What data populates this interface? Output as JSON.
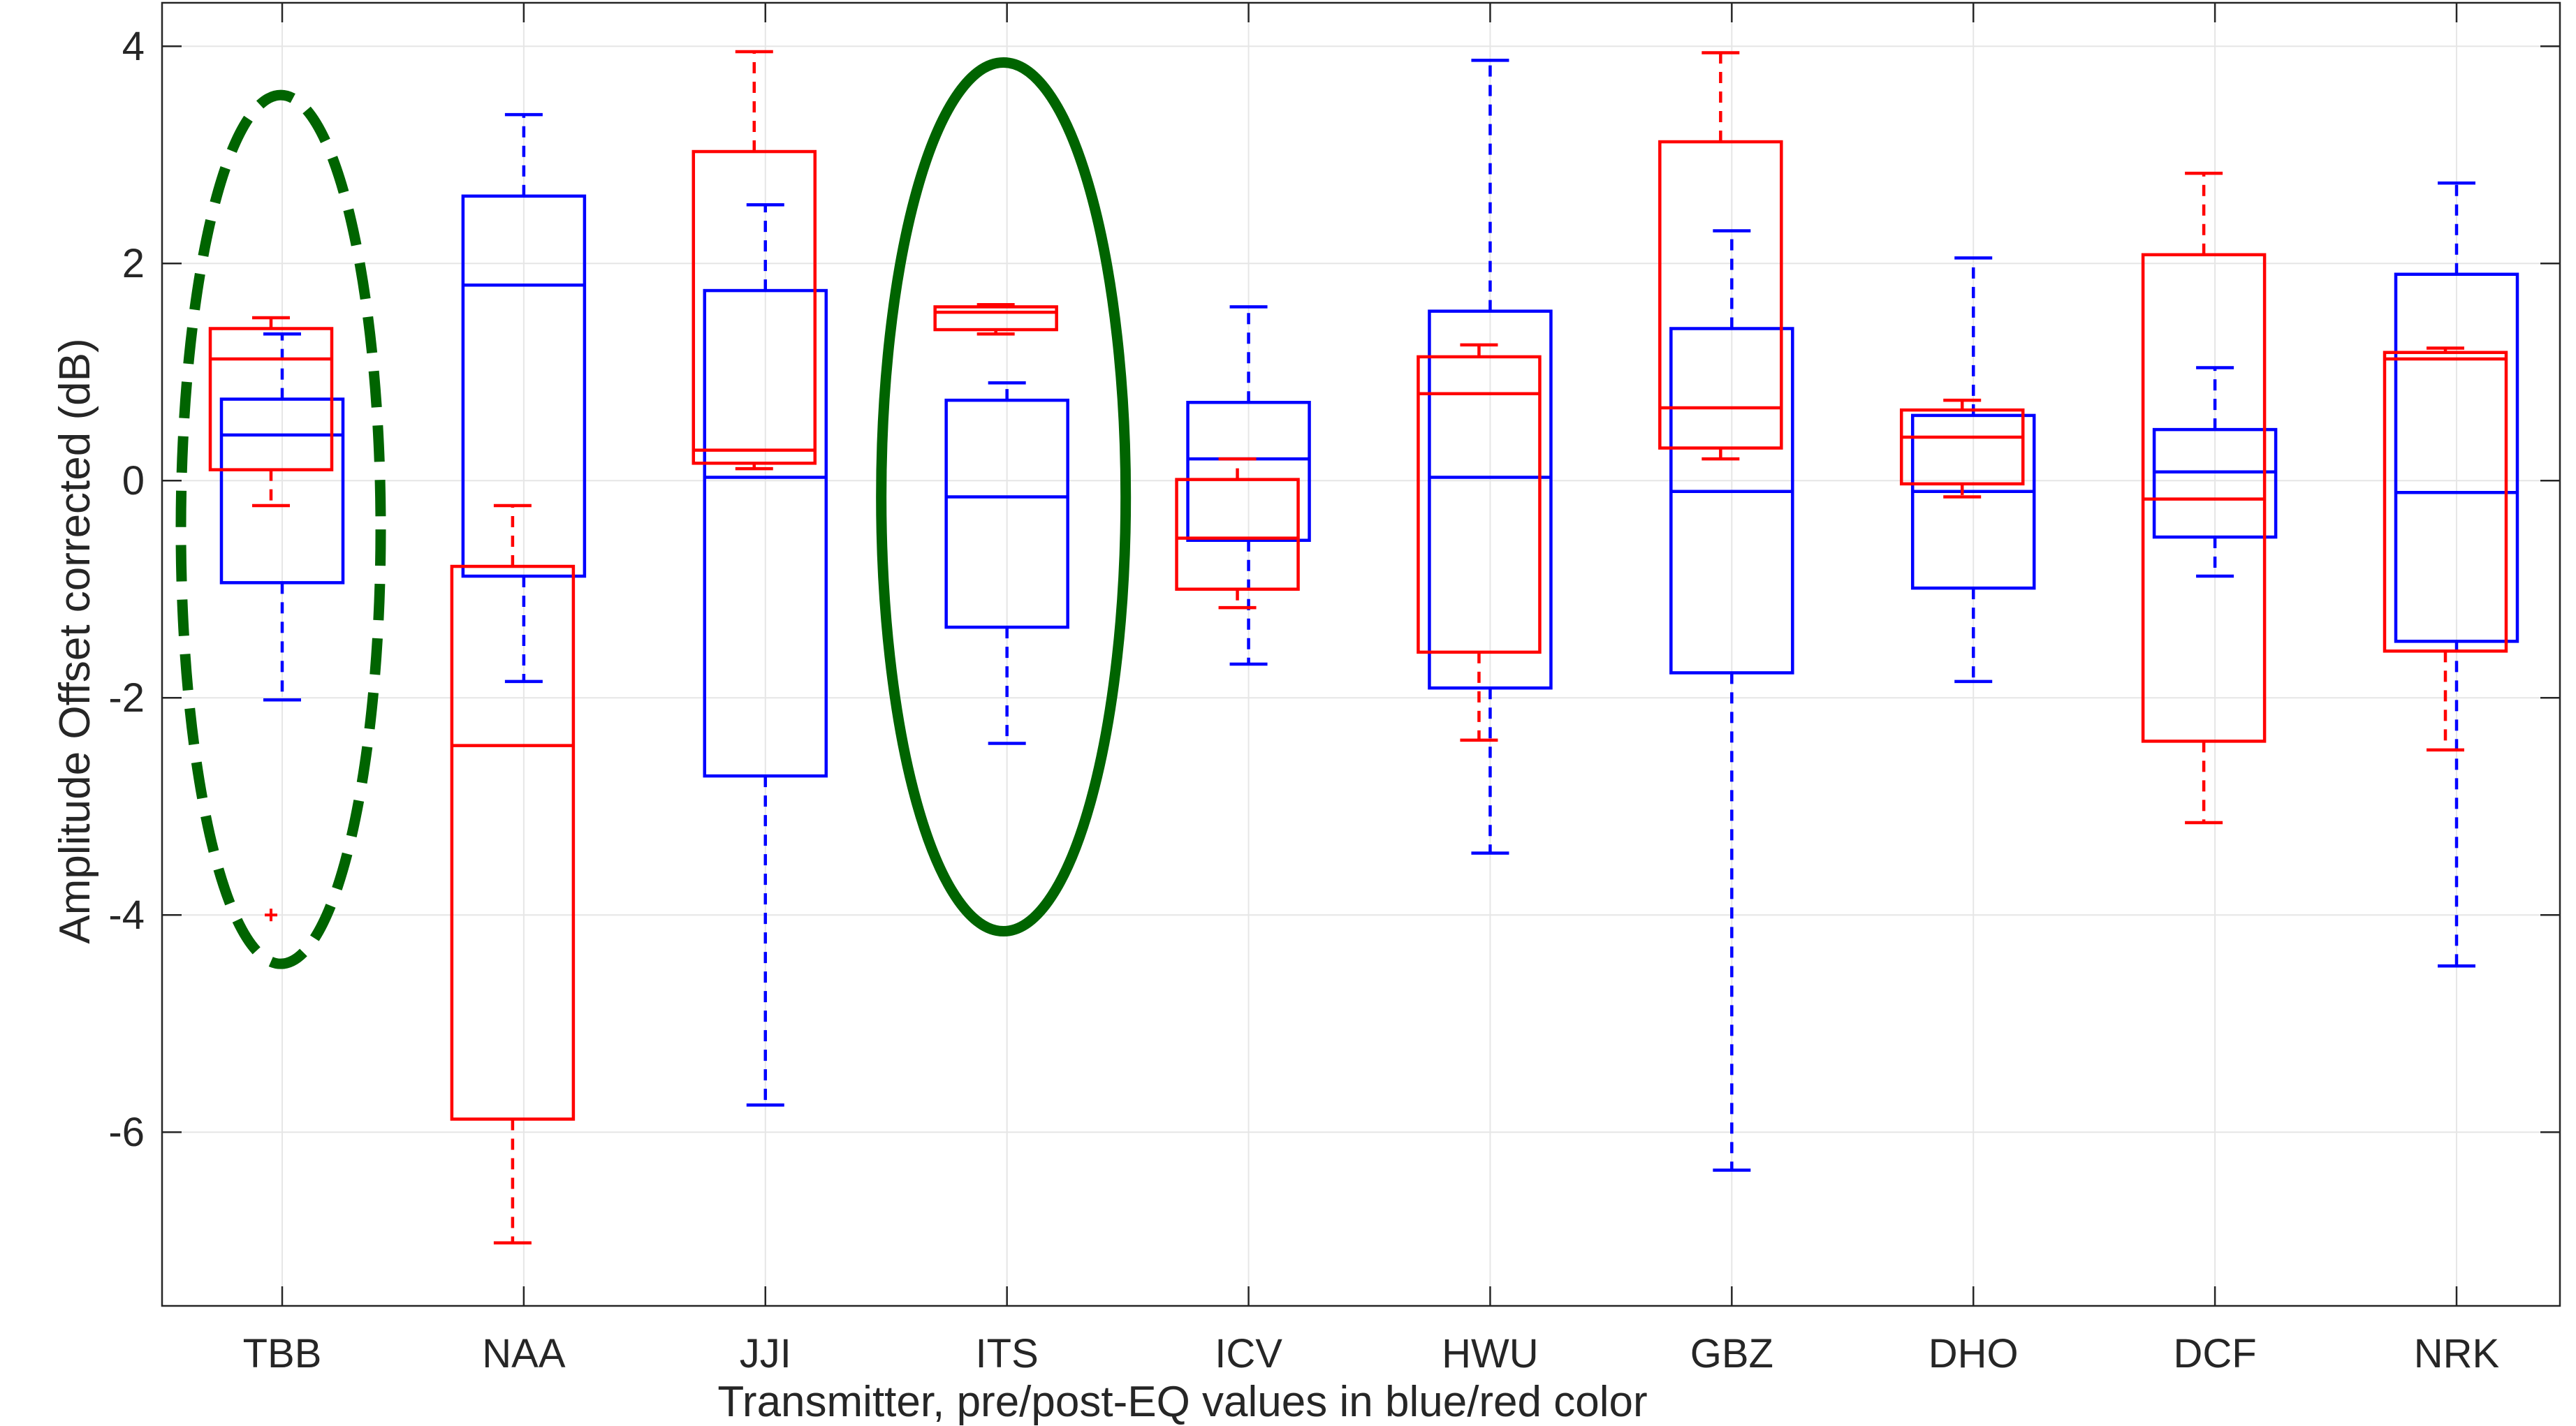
{
  "chart_data": {
    "type": "box",
    "title": "",
    "xlabel": "Transmitter, pre/post-EQ values in blue/red color",
    "ylabel": "Amplitude Offset corrected (dB)",
    "ylim": [
      -7.6,
      4.4
    ],
    "yticks": [
      4,
      2,
      0,
      -2,
      -4,
      -6
    ],
    "grid": true,
    "categories": [
      "TBB",
      "NAA",
      "JJI",
      "ITS",
      "ICV",
      "HWU",
      "GBZ",
      "DHO",
      "DCF",
      "NRK"
    ],
    "series": [
      {
        "color": "#0000ff",
        "boxes": [
          {
            "whisker_low": -2.02,
            "q1": -0.94,
            "median": 0.42,
            "q3": 0.75,
            "whisker_high": 1.35
          },
          {
            "whisker_low": -1.85,
            "q1": -0.88,
            "median": 1.8,
            "q3": 2.62,
            "whisker_high": 3.37
          },
          {
            "whisker_low": -5.75,
            "q1": -2.72,
            "median": 0.03,
            "q3": 1.75,
            "whisker_high": 2.54
          },
          {
            "whisker_low": -2.42,
            "q1": -1.35,
            "median": -0.15,
            "q3": 0.74,
            "whisker_high": 0.9
          },
          {
            "whisker_low": -1.69,
            "q1": -0.55,
            "median": 0.2,
            "q3": 0.72,
            "whisker_high": 1.6
          },
          {
            "whisker_low": -3.43,
            "q1": -1.91,
            "median": 0.03,
            "q3": 1.56,
            "whisker_high": 3.87
          },
          {
            "whisker_low": -6.35,
            "q1": -1.77,
            "median": -0.1,
            "q3": 1.4,
            "whisker_high": 2.3
          },
          {
            "whisker_low": -1.85,
            "q1": -0.99,
            "median": -0.1,
            "q3": 0.6,
            "whisker_high": 2.05
          },
          {
            "whisker_low": -0.88,
            "q1": -0.52,
            "median": 0.08,
            "q3": 0.47,
            "whisker_high": 1.04
          },
          {
            "whisker_low": -4.47,
            "q1": -1.48,
            "median": -0.11,
            "q3": 1.9,
            "whisker_high": 2.74
          }
        ]
      },
      {
        "color": "#ff0000",
        "boxes": [
          {
            "whisker_low": -0.23,
            "q1": 0.1,
            "median": 1.12,
            "q3": 1.4,
            "whisker_high": 1.5,
            "outliers": [
              -4.0
            ]
          },
          {
            "whisker_low": -7.02,
            "q1": -5.88,
            "median": -2.44,
            "q3": -0.79,
            "whisker_high": -0.23
          },
          {
            "whisker_low": 0.11,
            "q1": 0.16,
            "median": 0.28,
            "q3": 3.03,
            "whisker_high": 3.95
          },
          {
            "whisker_low": 1.35,
            "q1": 1.39,
            "median": 1.55,
            "q3": 1.6,
            "whisker_high": 1.62
          },
          {
            "whisker_low": -1.17,
            "q1": -1.0,
            "median": -0.53,
            "q3": 0.01,
            "whisker_high": 0.2
          },
          {
            "whisker_low": -2.39,
            "q1": -1.58,
            "median": 0.8,
            "q3": 1.14,
            "whisker_high": 1.25
          },
          {
            "whisker_low": 0.2,
            "q1": 0.3,
            "median": 0.67,
            "q3": 3.12,
            "whisker_high": 3.94
          },
          {
            "whisker_low": -0.15,
            "q1": -0.03,
            "median": 0.4,
            "q3": 0.65,
            "whisker_high": 0.74
          },
          {
            "whisker_low": -3.15,
            "q1": -2.4,
            "median": -0.17,
            "q3": 2.08,
            "whisker_high": 2.83
          },
          {
            "whisker_low": -2.48,
            "q1": -1.57,
            "median": 1.12,
            "q3": 1.18,
            "whisker_high": 1.22
          }
        ]
      }
    ],
    "annotations": [
      {
        "shape": "ellipse",
        "style": "dashed",
        "color": "#006400",
        "category": "TBB",
        "y_top": 3.55,
        "y_bottom": -4.45
      },
      {
        "shape": "ellipse",
        "style": "solid",
        "color": "#006400",
        "category": "ITS",
        "y_top": 3.85,
        "y_bottom": -4.15
      }
    ]
  }
}
